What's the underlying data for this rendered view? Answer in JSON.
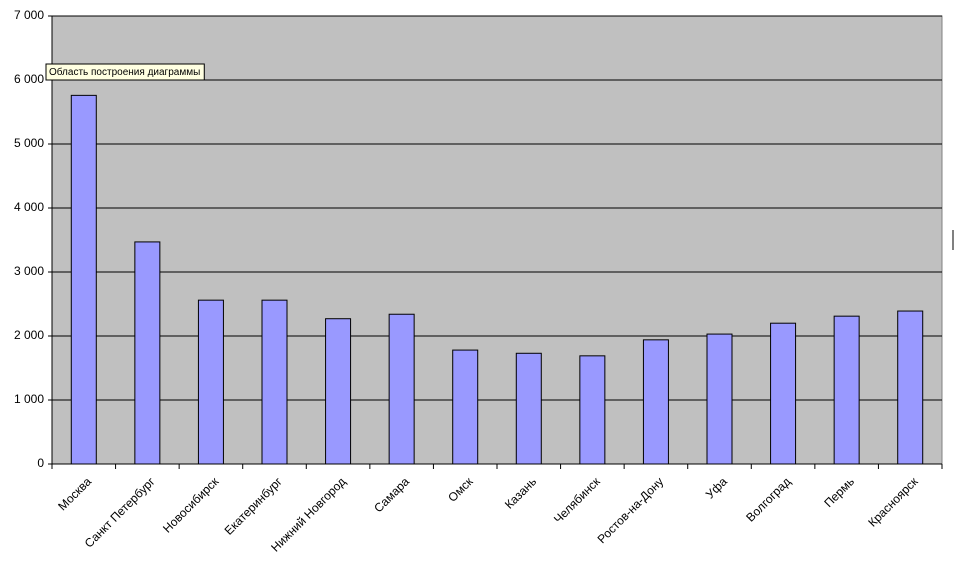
{
  "chart_data": {
    "type": "bar",
    "categories": [
      "Москва",
      "Санкт Петербург",
      "Новосибирск",
      "Екатеринбург",
      "Нижний Новгород",
      "Самара",
      "Омск",
      "Казань",
      "Челябинск",
      "Ростов-на-Дону",
      "Уфа",
      "Волгоград",
      "Пермь",
      "Красноярск"
    ],
    "values": [
      5760,
      3470,
      2560,
      2560,
      2270,
      2340,
      1780,
      1730,
      1690,
      1940,
      2030,
      2200,
      2310,
      2390
    ],
    "color": "#9999ff",
    "ylim": [
      0,
      7000
    ],
    "yticks": [
      0,
      {
        "value": 1000,
        "label": "1 000"
      },
      {
        "value": 2000,
        "label": "2 000"
      },
      {
        "value": 3000,
        "label": "3 000"
      },
      {
        "value": 4000,
        "label": "4 000"
      },
      {
        "value": 5000,
        "label": "5 000"
      },
      {
        "value": 6000,
        "label": "6 000"
      },
      {
        "value": 7000,
        "label": "7 000"
      }
    ],
    "grid": true,
    "tooltip": "Область построения диаграммы"
  }
}
